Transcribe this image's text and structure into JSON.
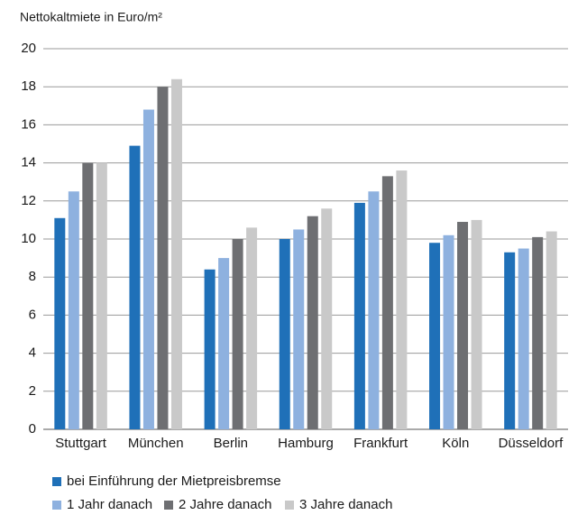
{
  "chart_data": {
    "type": "bar",
    "title": "Nettokaltmiete in Euro/m²",
    "categories": [
      "Stuttgart",
      "München",
      "Berlin",
      "Hamburg",
      "Frankfurt",
      "Köln",
      "Düsseldorf"
    ],
    "series": [
      {
        "name": "bei Einführung der Mietpreisbremse",
        "color": "#1f70b8",
        "values": [
          11.1,
          14.9,
          8.4,
          10.0,
          11.9,
          9.8,
          9.3
        ]
      },
      {
        "name": "1 Jahr danach",
        "color": "#8eb1df",
        "values": [
          12.5,
          16.8,
          9.0,
          10.5,
          12.5,
          10.2,
          9.5
        ]
      },
      {
        "name": "2 Jahre danach",
        "color": "#6e6f72",
        "values": [
          14.0,
          18.0,
          10.0,
          11.2,
          13.3,
          10.9,
          10.1
        ]
      },
      {
        "name": "3 Jahre danach",
        "color": "#c9c9c9",
        "values": [
          14.0,
          18.4,
          10.6,
          11.6,
          13.6,
          11.0,
          10.4
        ]
      }
    ],
    "ylim": [
      0,
      20
    ],
    "yticks": [
      0,
      2,
      4,
      6,
      8,
      10,
      12,
      14,
      16,
      18,
      20
    ],
    "grid": true,
    "legend": "bottom"
  }
}
